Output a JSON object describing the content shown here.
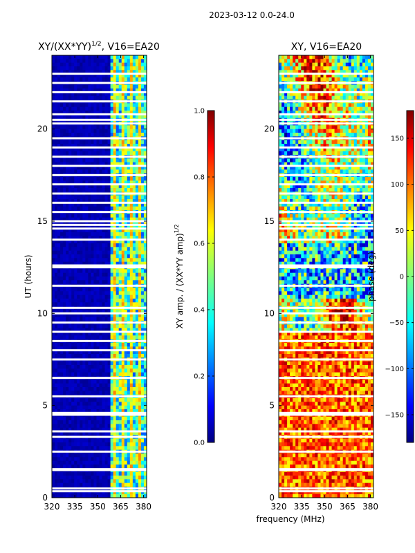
{
  "figure_title": "2023-03-12 0.0-24.0",
  "chart_data": [
    {
      "type": "heatmap",
      "title_main": "XY/(XX*YY)",
      "title_sup": "1/2",
      "title_tail": ", V16=EA20",
      "xlabel": "",
      "ylabel": "UT (hours)",
      "xlim": [
        320,
        382
      ],
      "ylim": [
        0,
        24
      ],
      "xticks": [
        320,
        335,
        350,
        365,
        380
      ],
      "yticks": [
        0,
        5,
        10,
        15,
        20
      ],
      "colorbar": {
        "label_main": "XY amp. / (XX*YY amp)",
        "label_sup": "1/2",
        "range": [
          0.0,
          1.0
        ],
        "ticks": [
          "0.0",
          "0.2",
          "0.4",
          "0.6",
          "0.8",
          "1.0"
        ],
        "colormap": "jet"
      },
      "rfi_band_mhz": [
        358,
        382
      ],
      "flagged_ut_hours": [
        0.35,
        0.5,
        1.5,
        1.55,
        2.5,
        3.3,
        3.6,
        4.5,
        4.6,
        5.5,
        6.5,
        7.5,
        8.0,
        8.5,
        9.0,
        9.5,
        10.0,
        10.3,
        11.5,
        12.5,
        12.6,
        14.0,
        14.6,
        14.8,
        15.0,
        15.5,
        16.0,
        16.5,
        17.0,
        17.5,
        18.0,
        18.5,
        19.0,
        19.5,
        20.3,
        20.5,
        20.8,
        21.5,
        22.0,
        22.5,
        23.0
      ]
    },
    {
      "type": "heatmap",
      "title": "XY, V16=EA20",
      "xlabel": "frequency (MHz)",
      "ylabel": "",
      "xlim": [
        320,
        382
      ],
      "ylim": [
        0,
        24
      ],
      "xticks": [
        320,
        335,
        350,
        365,
        380
      ],
      "yticks": [
        0,
        5,
        10,
        15,
        20
      ],
      "colorbar": {
        "label": "phase (deg)",
        "range": [
          -180,
          180
        ],
        "ticks": [
          "−150",
          "−100",
          "−50",
          "0",
          "50",
          "100",
          "150"
        ],
        "colormap": "jet"
      },
      "flagged_ut_hours": [
        0.35,
        0.5,
        1.5,
        1.55,
        2.5,
        3.3,
        3.6,
        4.5,
        4.6,
        5.5,
        6.5,
        7.5,
        8.0,
        8.5,
        9.0,
        9.5,
        10.0,
        10.3,
        11.5,
        12.5,
        12.6,
        14.0,
        14.6,
        14.8,
        15.0,
        15.5,
        16.0,
        16.5,
        17.0,
        17.5,
        18.0,
        18.5,
        19.0,
        19.5,
        20.3,
        20.5,
        20.8,
        21.5,
        22.0,
        22.5,
        23.0
      ]
    }
  ],
  "colors": {
    "jet_dark_blue": "#00007f",
    "jet_blue": "#0000ff",
    "jet_cyan": "#00ffff",
    "jet_yellow": "#ffff00",
    "jet_red": "#ff0000",
    "jet_dark_red": "#7f0000",
    "flag": "#ffffff"
  }
}
